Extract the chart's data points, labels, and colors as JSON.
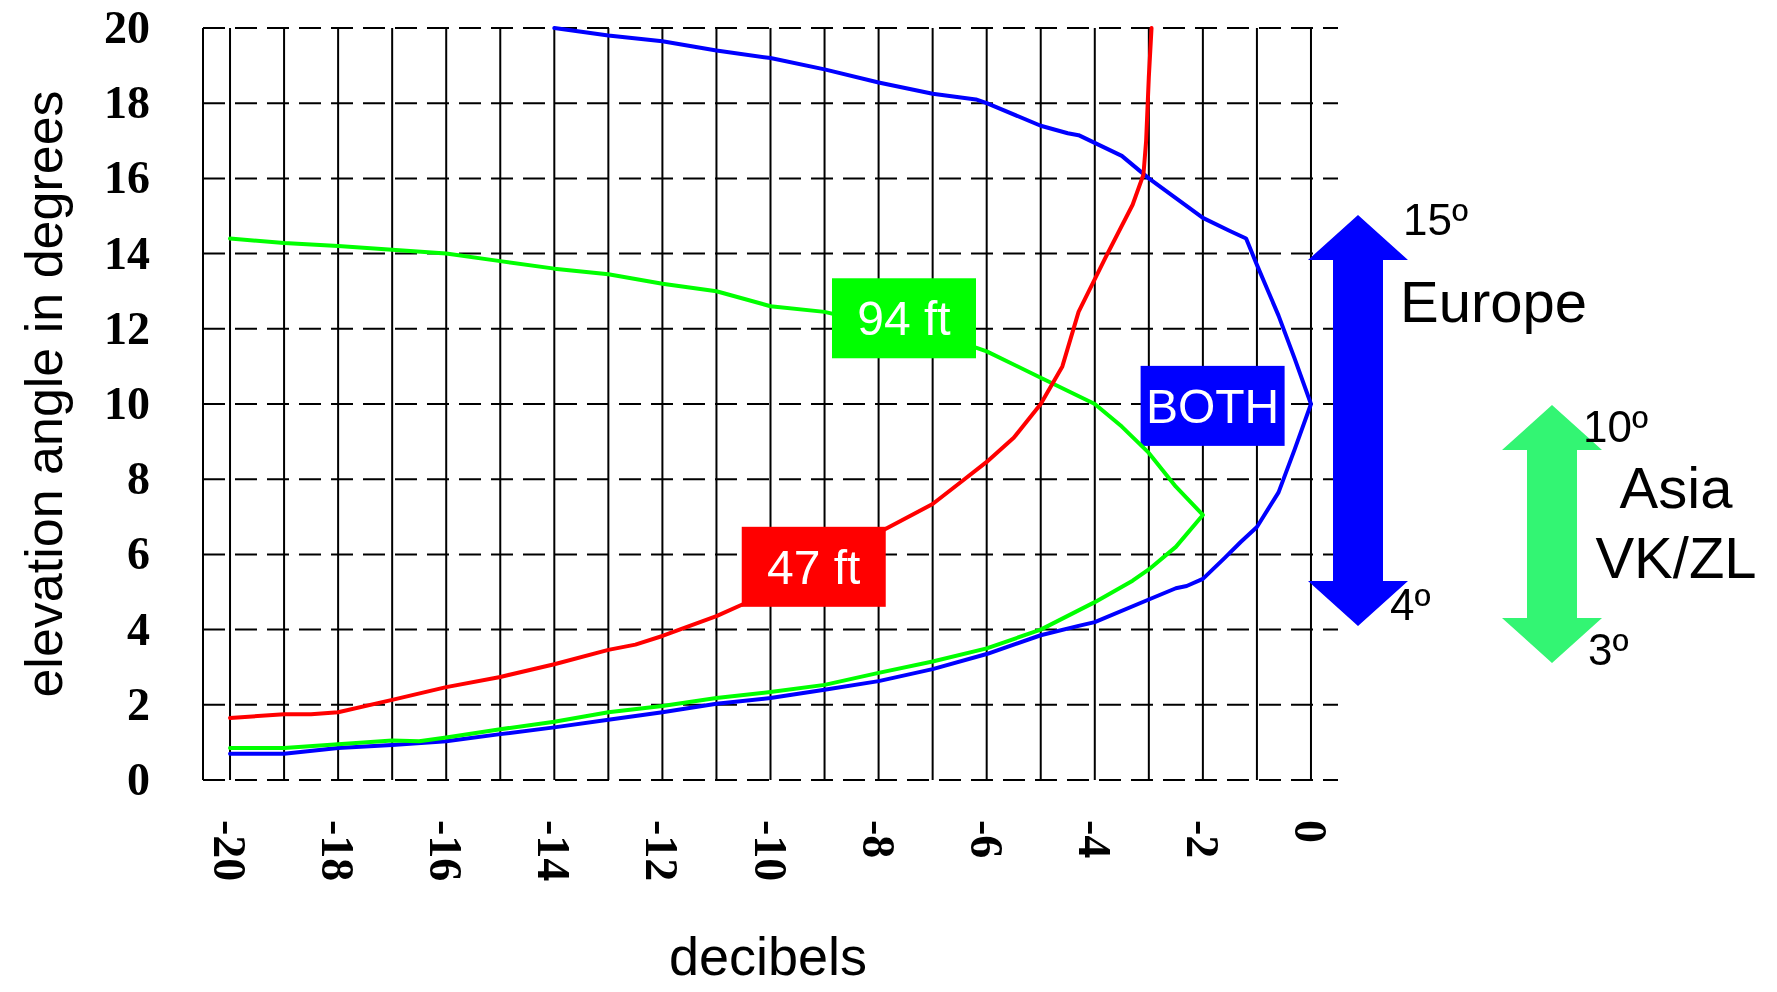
{
  "chart_data": {
    "type": "line",
    "xlabel": "decibels",
    "ylabel": "elevation angle in degrees",
    "xlim": [
      -20.5,
      0.5
    ],
    "ylim": [
      0,
      20
    ],
    "xticks": [
      -20,
      {
        "value": -19,
        "label": null
      },
      -18,
      {
        "value": -17,
        "label": null
      },
      -16,
      {
        "value": -15,
        "label": null
      },
      -14,
      {
        "value": -13,
        "label": null
      },
      -12,
      {
        "value": -11,
        "label": null
      },
      -10,
      {
        "value": -9,
        "label": null
      },
      -8,
      {
        "value": -7,
        "label": null
      },
      -6,
      {
        "value": -5,
        "label": null
      },
      -4,
      {
        "value": -3,
        "label": null
      },
      -2,
      {
        "value": -1,
        "label": null
      },
      0
    ],
    "yticks": [
      0,
      2,
      4,
      6,
      8,
      10,
      12,
      14,
      16,
      18,
      20
    ],
    "grid": true,
    "marker": "none",
    "line_style": "solid",
    "series": [
      {
        "name": "BOTH",
        "color": "#0000ff",
        "x": [
          -20,
          -19,
          -18,
          -17,
          -16,
          -15,
          -14,
          -13,
          -12,
          -11,
          -10,
          -9,
          -8,
          -7,
          -6,
          -5,
          -4.3,
          -4,
          -3,
          -2.5,
          -2.3,
          -2,
          -1.6,
          -1.3,
          -1,
          -0.6,
          -0.3,
          0,
          -0.3,
          -0.6,
          -1,
          -1.2,
          -1.5,
          -2,
          -3,
          -3.5,
          -4.3,
          -4.5,
          -5,
          -6,
          -6.2,
          -7,
          -8,
          -9,
          -10,
          -11,
          -12,
          -13,
          -14
        ],
        "values": [
          0.7,
          0.7,
          0.85,
          0.93,
          1.03,
          1.22,
          1.4,
          1.6,
          1.8,
          2.03,
          2.18,
          2.4,
          2.63,
          2.95,
          3.35,
          3.85,
          4.1,
          4.2,
          4.8,
          5.1,
          5.16,
          5.35,
          5.9,
          6.33,
          6.73,
          7.65,
          8.8,
          10,
          11.2,
          12.35,
          13.7,
          14.4,
          14.6,
          14.95,
          16,
          16.6,
          17.15,
          17.2,
          17.4,
          18,
          18.1,
          18.25,
          18.55,
          18.9,
          19.2,
          19.4,
          19.65,
          19.8,
          20
        ]
      },
      {
        "name": "94 ft",
        "color": "#00ff00",
        "x": [
          -20,
          -19,
          -18,
          -17,
          -16.5,
          -16,
          -15,
          -14,
          -13,
          -12,
          -11,
          -10,
          -9,
          -8,
          -7,
          -6,
          -5,
          -4,
          -3.3,
          -3,
          -2.5,
          -2,
          -2.5,
          -3,
          -3.5,
          -4,
          -5,
          -6,
          -6.2,
          -8.3,
          -9,
          -10,
          -11,
          -12,
          -13,
          -14,
          -15,
          -16,
          -17,
          -18,
          -19,
          -20
        ],
        "values": [
          0.85,
          0.85,
          0.95,
          1.05,
          1.03,
          1.13,
          1.35,
          1.55,
          1.8,
          1.97,
          2.18,
          2.34,
          2.53,
          2.85,
          3.15,
          3.5,
          4.0,
          4.73,
          5.3,
          5.6,
          6.2,
          7.05,
          7.8,
          8.7,
          9.4,
          10.0,
          10.7,
          11.4,
          11.5,
          null,
          12.45,
          12.6,
          13.0,
          13.2,
          13.45,
          13.6,
          13.8,
          14.0,
          14.1,
          14.2,
          14.28,
          14.4
        ]
      },
      {
        "name": "47 ft",
        "color": "#ff0000",
        "x": [
          -20,
          -19,
          -18.5,
          -18,
          -17,
          -16,
          -15,
          -14,
          -13,
          -12.5,
          -12,
          -11,
          -10.5,
          -8,
          -7,
          -6.5,
          -6,
          -5.5,
          -5,
          -4.6,
          -4.3,
          -3.8,
          -3.3,
          -3.1,
          -3.05,
          -3,
          -2.95
        ],
        "values": [
          1.65,
          1.75,
          1.75,
          1.8,
          2.13,
          2.47,
          2.74,
          3.08,
          3.46,
          3.6,
          3.83,
          4.36,
          4.68,
          null,
          7.34,
          7.9,
          8.46,
          9.1,
          10.0,
          11.0,
          12.45,
          13.9,
          15.3,
          16.1,
          17.0,
          18.7,
          20
        ]
      }
    ],
    "annotations": [
      "15º",
      "Europe",
      "4º",
      "10º",
      "Asia VK/ZL",
      "3º"
    ]
  }
}
